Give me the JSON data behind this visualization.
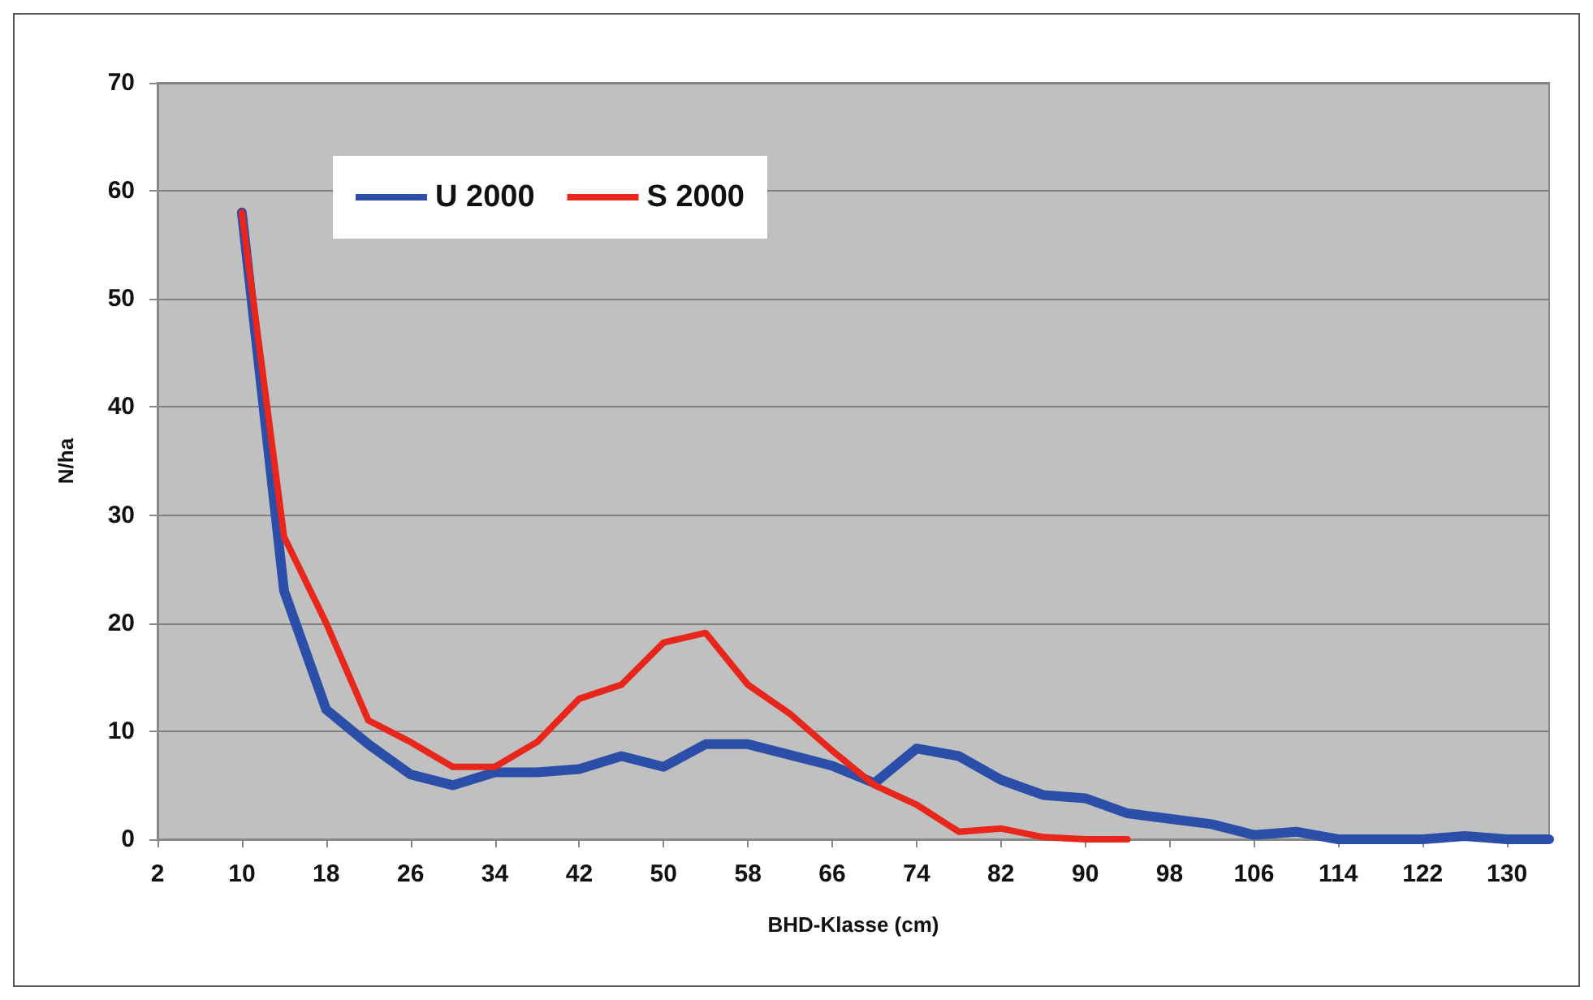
{
  "chart_data": {
    "type": "line",
    "xlabel": "BHD-Klasse (cm)",
    "ylabel": "N/ha",
    "categories": [
      "2",
      null,
      "10",
      null,
      "18",
      null,
      "26",
      null,
      "34",
      null,
      "42",
      null,
      "50",
      null,
      "58",
      null,
      "66",
      null,
      "74",
      null,
      "82",
      null,
      "90",
      null,
      "98",
      null,
      "106",
      null,
      "114",
      null,
      "122",
      null,
      "130",
      null
    ],
    "series": [
      {
        "name": "U 2000",
        "color": "#2b4ea8",
        "values": [
          null,
          null,
          58,
          23,
          12,
          8.8,
          6,
          5,
          6.2,
          6.2,
          6.5,
          7.7,
          6.7,
          8.8,
          8.8,
          7.8,
          6.8,
          5.2,
          8.4,
          7.7,
          5.5,
          4.1,
          3.8,
          2.4,
          1.9,
          1.4,
          0.4,
          0.7,
          0,
          0,
          0,
          0.3,
          0,
          0
        ]
      },
      {
        "name": "S 2000",
        "color": "#e8261b",
        "values": [
          null,
          null,
          58,
          28,
          20,
          11,
          9,
          6.7,
          6.7,
          9,
          13,
          14.3,
          18.2,
          19.1,
          14.3,
          11.6,
          8.2,
          5,
          3.2,
          0.7,
          1,
          0.2,
          0,
          0,
          null,
          null,
          null,
          null,
          null,
          null,
          null,
          null,
          null,
          null
        ]
      }
    ],
    "ylim": [
      0,
      70
    ],
    "yticks": [
      0,
      10,
      20,
      30,
      40,
      50,
      60,
      70
    ],
    "grid": "y",
    "legend": "top left",
    "marker": "none",
    "line_style": "solid"
  }
}
